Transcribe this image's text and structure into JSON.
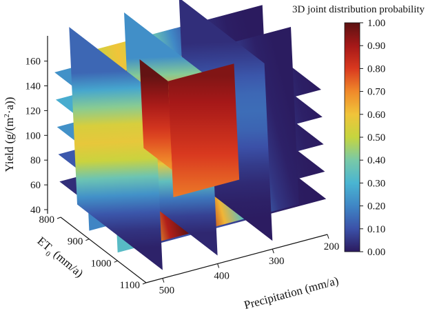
{
  "chart_data": {
    "type": "volume-slice",
    "title": "",
    "colorbar": {
      "title": "3D joint distribution probability",
      "range": [
        0,
        1
      ],
      "ticks": [
        "0.00",
        "0.10",
        "0.20",
        "0.30",
        "0.40",
        "0.50",
        "0.60",
        "0.70",
        "0.80",
        "0.90",
        "1.00"
      ]
    },
    "axes": {
      "yield": {
        "label_main": "Yield (g/(m",
        "label_sup": "2",
        "label_end": "·a))",
        "ticks": [
          "40",
          "60",
          "80",
          "100",
          "120",
          "140",
          "160"
        ],
        "range": [
          40,
          170
        ]
      },
      "et0": {
        "label_main": "ET",
        "label_sub": "0",
        "label_end": " (mm/a)",
        "ticks": [
          "800",
          "900",
          "1000",
          "1100"
        ],
        "range": [
          800,
          1100
        ]
      },
      "precipitation": {
        "label": "Precipitation (mm/a)",
        "ticks": [
          "200",
          "300",
          "400",
          "500"
        ],
        "range": [
          200,
          530
        ]
      }
    },
    "peak": {
      "yield": 120,
      "et0": 1000,
      "precipitation": 430,
      "probability": 1.0
    },
    "colormap": [
      "#2b1a5e",
      "#3b51a8",
      "#3f86c5",
      "#4ab5d2",
      "#79c9a7",
      "#c5d53f",
      "#f0c43a",
      "#f0892a",
      "#d9391f",
      "#a51818",
      "#5c1212"
    ]
  }
}
